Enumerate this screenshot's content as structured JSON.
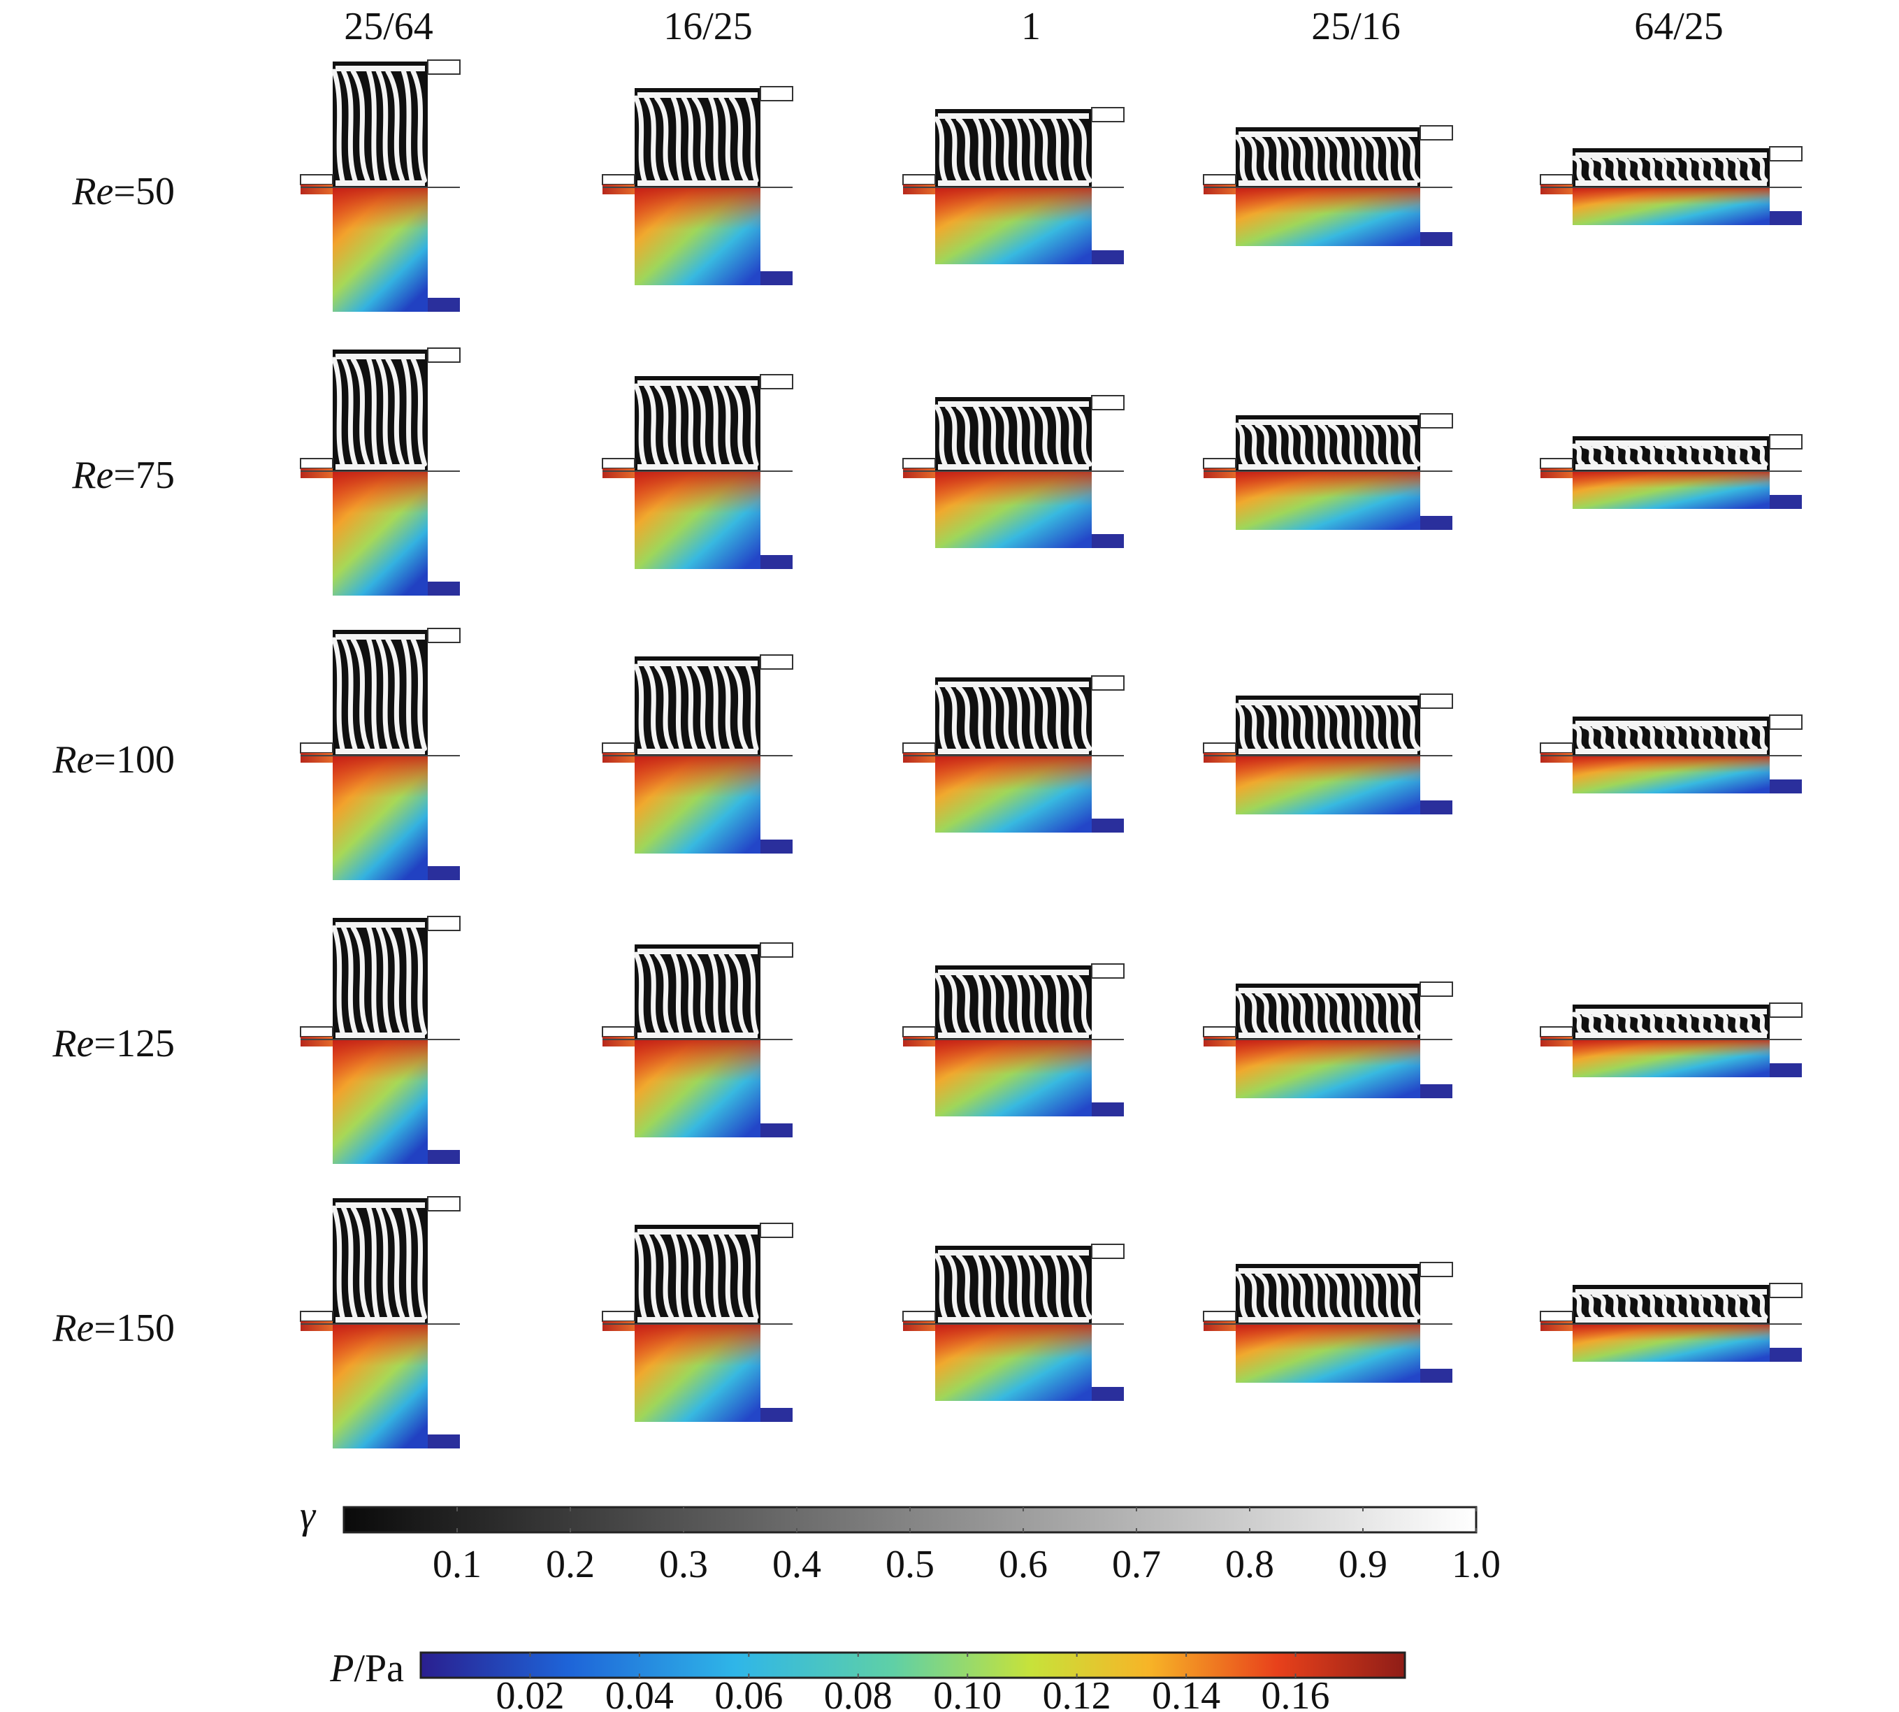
{
  "figure": {
    "column_headers": [
      "25/64",
      "16/25",
      "1",
      "25/16",
      "64/25"
    ],
    "row_labels": [
      {
        "symbol": "Re",
        "value": "=50"
      },
      {
        "symbol": "Re",
        "value": "=75"
      },
      {
        "symbol": "Re",
        "value": "=100"
      },
      {
        "symbol": "Re",
        "value": "=125"
      },
      {
        "symbol": "Re",
        "value": "=150"
      }
    ],
    "colorbar_gamma": {
      "label": "γ",
      "ticks": [
        "0.1",
        "0.2",
        "0.3",
        "0.4",
        "0.5",
        "0.6",
        "0.7",
        "0.8",
        "0.9",
        "1.0"
      ],
      "gradient_start": "#0a0a0a",
      "gradient_end": "#ffffff"
    },
    "colorbar_pressure": {
      "label_symbol": "P",
      "label_unit": "/Pa",
      "ticks": [
        "0.02",
        "0.04",
        "0.06",
        "0.08",
        "0.10",
        "0.12",
        "0.14",
        "0.16"
      ],
      "colors": [
        "#2a1f8f",
        "#1e64d8",
        "#2fb6e8",
        "#5fd0a6",
        "#c7e23a",
        "#f7b427",
        "#e8411b",
        "#8f1d17"
      ]
    }
  }
}
